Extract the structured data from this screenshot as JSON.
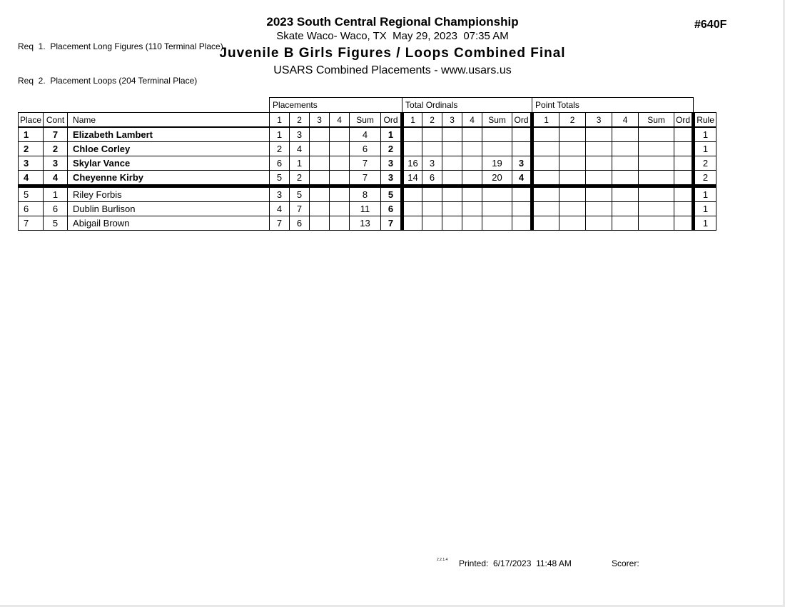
{
  "page": {
    "req_lines": [
      "Req  1.  Placement Long Figures (110 Terminal Place)",
      "Req  2.  Placement Loops (204 Terminal Place)"
    ],
    "title": "2023 South Central Regional Championship",
    "venue_line": "Skate Waco- Waco, TX  May 29, 2023  07:35 AM",
    "event_title": "Juvenile B Girls Figures / Loops Combined Final",
    "org_line": "USARS Combined Placements - www.usars.us",
    "doc_number": "#640F"
  },
  "table": {
    "group_headers": [
      "Placements",
      "Total Ordinals",
      "Point Totals"
    ],
    "columns": [
      "Place",
      "Cont",
      "Name"
    ],
    "sub_columns": [
      "1",
      "2",
      "3",
      "4",
      "Sum",
      "Ord"
    ],
    "rule_header": "Rule",
    "rows": [
      {
        "place": "1",
        "cont": "7",
        "name": "Elizabeth Lambert",
        "bold": true,
        "cut_line": false,
        "placements": [
          "1",
          "3",
          "",
          "",
          "4",
          "1"
        ],
        "total_ordinals": [
          "",
          "",
          "",
          "",
          "",
          ""
        ],
        "point_totals": [
          "",
          "",
          "",
          "",
          "",
          ""
        ],
        "rule": "1"
      },
      {
        "place": "2",
        "cont": "2",
        "name": "Chloe Corley",
        "bold": true,
        "cut_line": false,
        "placements": [
          "2",
          "4",
          "",
          "",
          "6",
          "2"
        ],
        "total_ordinals": [
          "",
          "",
          "",
          "",
          "",
          ""
        ],
        "point_totals": [
          "",
          "",
          "",
          "",
          "",
          ""
        ],
        "rule": "1"
      },
      {
        "place": "3",
        "cont": "3",
        "name": "Skylar Vance",
        "bold": true,
        "cut_line": false,
        "placements": [
          "6",
          "1",
          "",
          "",
          "7",
          "3"
        ],
        "total_ordinals": [
          "16",
          "3",
          "",
          "",
          "19",
          "3"
        ],
        "point_totals": [
          "",
          "",
          "",
          "",
          "",
          ""
        ],
        "rule": "2"
      },
      {
        "place": "4",
        "cont": "4",
        "name": "Cheyenne Kirby",
        "bold": true,
        "cut_line": true,
        "placements": [
          "5",
          "2",
          "",
          "",
          "7",
          "3"
        ],
        "total_ordinals": [
          "14",
          "6",
          "",
          "",
          "20",
          "4"
        ],
        "point_totals": [
          "",
          "",
          "",
          "",
          "",
          ""
        ],
        "rule": "2"
      },
      {
        "place": "5",
        "cont": "1",
        "name": "Riley Forbis",
        "bold": false,
        "cut_line": false,
        "placements": [
          "3",
          "5",
          "",
          "",
          "8",
          "5"
        ],
        "total_ordinals": [
          "",
          "",
          "",
          "",
          "",
          ""
        ],
        "point_totals": [
          "",
          "",
          "",
          "",
          "",
          ""
        ],
        "rule": "1"
      },
      {
        "place": "6",
        "cont": "6",
        "name": "Dublin Burlison",
        "bold": false,
        "cut_line": false,
        "placements": [
          "4",
          "7",
          "",
          "",
          "11",
          "6"
        ],
        "total_ordinals": [
          "",
          "",
          "",
          "",
          "",
          ""
        ],
        "point_totals": [
          "",
          "",
          "",
          "",
          "",
          ""
        ],
        "rule": "1"
      },
      {
        "place": "7",
        "cont": "5",
        "name": "Abigail Brown",
        "bold": false,
        "cut_line": false,
        "placements": [
          "7",
          "6",
          "",
          "",
          "13",
          "7"
        ],
        "total_ordinals": [
          "",
          "",
          "",
          "",
          "",
          ""
        ],
        "point_totals": [
          "",
          "",
          "",
          "",
          "",
          ""
        ],
        "rule": "1"
      }
    ]
  },
  "footer": {
    "version": "2.2.1.4",
    "printed": "Printed:  6/17/2023  11:48 AM",
    "scorer_label": "Scorer:"
  }
}
